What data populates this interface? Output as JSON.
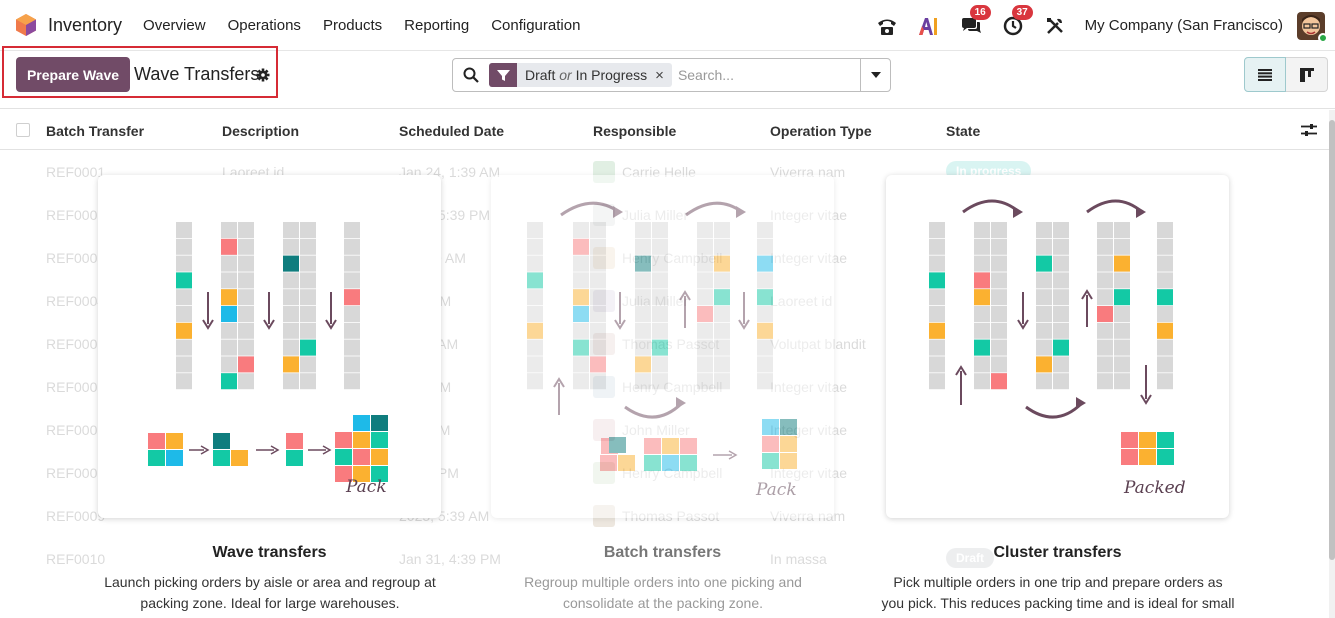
{
  "navbar": {
    "app_name": "Inventory",
    "menu": [
      "Overview",
      "Operations",
      "Products",
      "Reporting",
      "Configuration"
    ],
    "messages_count": "16",
    "activities_count": "37",
    "company": "My Company (San Francisco)"
  },
  "control": {
    "prepare_label": "Prepare Wave",
    "title": "Wave Transfers",
    "facet_value_1": "Draft",
    "facet_or": "or",
    "facet_value_2": "In Progress",
    "facet_remove": "×",
    "search_placeholder": "Search..."
  },
  "table": {
    "headers": [
      "Batch Transfer",
      "Description",
      "Scheduled Date",
      "Responsible",
      "Operation Type",
      "State"
    ],
    "rows": [
      {
        "ref": "REF0001",
        "desc": "Laoreet id",
        "date": "Jan 24, 1:39 AM",
        "resp": "Carrie Helle",
        "op": "Viverra nam",
        "state": "In progress"
      },
      {
        "ref": "REF0002",
        "desc": "",
        "date": "2025, 5:39 PM",
        "resp": "Julia Miller",
        "op": "Integer vitae",
        "state": ""
      },
      {
        "ref": "REF0003",
        "desc": "",
        "date": "5, 1:39 AM",
        "resp": "Henry Campbell",
        "op": "Integer vitae",
        "state": ""
      },
      {
        "ref": "REF0004",
        "desc": "",
        "date": "5:39 PM",
        "resp": "Julia Miller",
        "op": "Laoreet id",
        "state": ""
      },
      {
        "ref": "REF0005",
        "desc": "",
        "date": "10:39 AM",
        "resp": "Thomas Passot",
        "op": "Volutpat blandit",
        "state": ""
      },
      {
        "ref": "REF0006",
        "desc": "",
        "date": "7:39 PM",
        "resp": "Henry Campbell",
        "op": "Integer vitae",
        "state": ""
      },
      {
        "ref": "REF0007",
        "desc": "",
        "date": "5:39 AM",
        "resp": "John Miller",
        "op": "Integer vitae",
        "state": ""
      },
      {
        "ref": "REF0008",
        "desc": "",
        "date": "10:39 PM",
        "resp": "Henry Campbell",
        "op": "Integer vitae",
        "state": ""
      },
      {
        "ref": "REF0009",
        "desc": "",
        "date": "2025, 5:39 AM",
        "resp": "Thomas Passot",
        "op": "Viverra nam",
        "state": ""
      },
      {
        "ref": "REF0010",
        "desc": "",
        "date": "Jan 31, 4:39 PM",
        "resp": "",
        "op": "In massa",
        "state": "Draft"
      }
    ]
  },
  "help": {
    "wave": {
      "title": "Wave transfers",
      "line1": "Launch picking orders by aisle or area and regroup at",
      "line2": "packing zone. Ideal for large warehouses.",
      "caption": "Pack"
    },
    "batch": {
      "title": "Batch transfers",
      "line1": "Regroup multiple orders into one picking and",
      "line2": "consolidate at the packing zone.",
      "caption": "Pack"
    },
    "cluster": {
      "title": "Cluster transfers",
      "line1": "Pick multiple orders in one trip and prepare orders as",
      "line2": "you pick. This reduces packing time and is ideal for small",
      "caption": "Packed"
    }
  },
  "colors": {
    "brand": "#714b67",
    "pink": "#f97b7e",
    "orange": "#fbb130",
    "teal": "#13c9a5",
    "blue": "#1ebae8",
    "darkteal": "#0f7d7e",
    "shelf": "#d8d8d8"
  },
  "icons": [
    "phone-icon",
    "ai-icon",
    "messages-icon",
    "clock-icon",
    "tools-icon",
    "filter-icon",
    "search-icon",
    "gear-icon",
    "list-view-icon",
    "kanban-view-icon",
    "settings-sliders-icon"
  ]
}
